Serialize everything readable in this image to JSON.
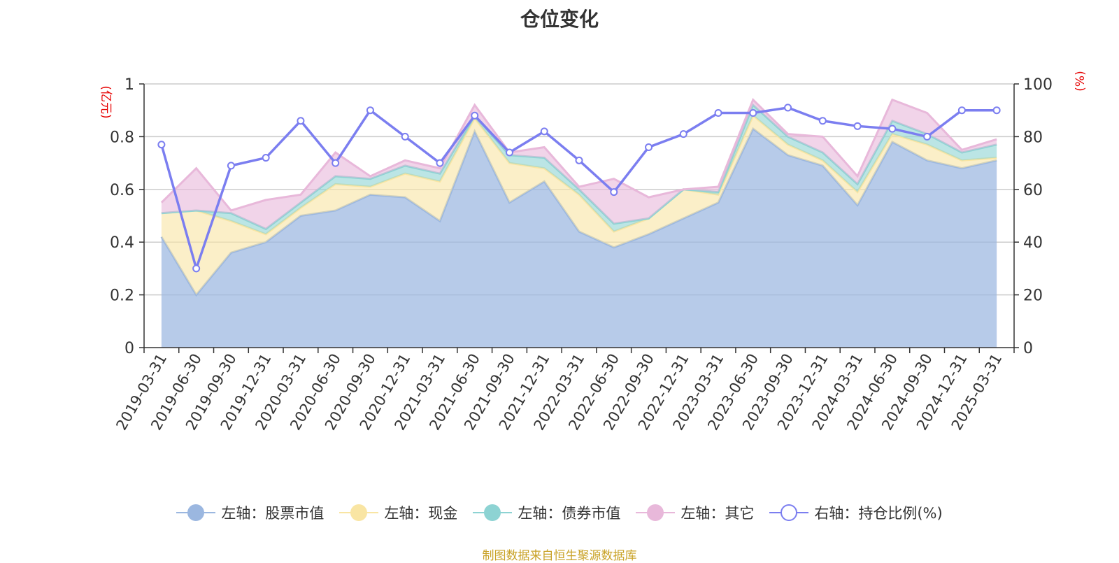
{
  "title": "仓位变化",
  "footer": "制图数据来自恒生聚源数据库",
  "chart_data": {
    "type": "area",
    "title": "仓位变化",
    "categories": [
      "2019-03-31",
      "2019-06-30",
      "2019-09-30",
      "2019-12-31",
      "2020-03-31",
      "2020-06-30",
      "2020-09-30",
      "2020-12-31",
      "2021-03-31",
      "2021-06-30",
      "2021-09-30",
      "2021-12-31",
      "2022-03-31",
      "2022-06-30",
      "2022-09-30",
      "2022-12-31",
      "2023-03-31",
      "2023-06-30",
      "2023-09-30",
      "2023-12-31",
      "2024-03-31",
      "2024-06-30",
      "2024-09-30",
      "2024-12-31",
      "2025-03-31"
    ],
    "left_axis": {
      "label": "(亿元)",
      "ylim": [
        0,
        1
      ],
      "ticks": [
        "0",
        "0.2",
        "0.4",
        "0.6",
        "0.8",
        "1"
      ]
    },
    "right_axis": {
      "label": "(%)",
      "ylim": [
        0,
        100
      ],
      "ticks": [
        "0",
        "20",
        "40",
        "60",
        "80",
        "100"
      ]
    },
    "grid": true,
    "legend_position": "bottom",
    "series": [
      {
        "name": "左轴：股票市值",
        "axis": "left",
        "stacked": true,
        "color": "#9bb7e0",
        "values": [
          0.42,
          0.2,
          0.36,
          0.4,
          0.5,
          0.52,
          0.58,
          0.57,
          0.48,
          0.82,
          0.55,
          0.63,
          0.44,
          0.38,
          0.43,
          0.49,
          0.55,
          0.83,
          0.73,
          0.69,
          0.54,
          0.78,
          0.71,
          0.68,
          0.71
        ]
      },
      {
        "name": "左轴：现金",
        "axis": "left",
        "stacked": true,
        "color": "#f9e5a3",
        "values": [
          0.09,
          0.32,
          0.12,
          0.03,
          0.03,
          0.1,
          0.03,
          0.09,
          0.15,
          0.05,
          0.15,
          0.05,
          0.14,
          0.06,
          0.06,
          0.11,
          0.03,
          0.05,
          0.04,
          0.02,
          0.05,
          0.03,
          0.06,
          0.03,
          0.01
        ]
      },
      {
        "name": "左轴：债券市值",
        "axis": "left",
        "stacked": true,
        "color": "#8dd3d3",
        "values": [
          0,
          0,
          0.03,
          0.02,
          0.02,
          0.03,
          0.03,
          0.03,
          0.03,
          0.01,
          0.03,
          0.04,
          0.02,
          0.03,
          0,
          0,
          0.01,
          0.04,
          0.03,
          0.03,
          0.03,
          0.05,
          0.04,
          0.03,
          0.05
        ]
      },
      {
        "name": "左轴：其它",
        "axis": "left",
        "stacked": true,
        "color": "#e8b8da",
        "values": [
          0.04,
          0.16,
          0.01,
          0.11,
          0.03,
          0.09,
          0.01,
          0.02,
          0.02,
          0.04,
          0.01,
          0.04,
          0.01,
          0.17,
          0.08,
          0,
          0.02,
          0.02,
          0.01,
          0.06,
          0.03,
          0.08,
          0.08,
          0.01,
          0.02
        ]
      },
      {
        "name": "右轴：持仓比例(%)",
        "axis": "right",
        "type": "line",
        "color": "#7b7ef0",
        "values": [
          77,
          30,
          69,
          72,
          86,
          70,
          90,
          80,
          70,
          88,
          74,
          82,
          71,
          59,
          76,
          81,
          89,
          89,
          91,
          86,
          84,
          83,
          80,
          90,
          90
        ]
      }
    ]
  },
  "legend": [
    {
      "label": "左轴：股票市值",
      "color": "#9bb7e0",
      "hollow": false
    },
    {
      "label": "左轴：现金",
      "color": "#f9e5a3",
      "hollow": false
    },
    {
      "label": "左轴：债券市值",
      "color": "#8dd3d3",
      "hollow": false
    },
    {
      "label": "左轴：其它",
      "color": "#e8b8da",
      "hollow": false
    },
    {
      "label": "右轴：持仓比例(%)",
      "color": "#7b7ef0",
      "hollow": true
    }
  ]
}
